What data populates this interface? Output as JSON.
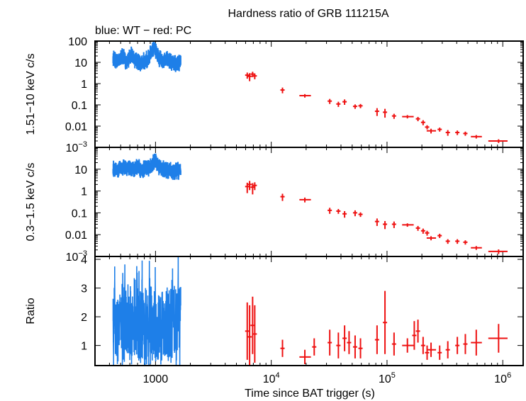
{
  "chart_data": {
    "type": "scatter",
    "title": "Hardness ratio of GRB 111215A",
    "subtitle": "blue: WT − red: PC",
    "xlabel": "Time since BAT trigger (s)",
    "xscale": "log",
    "xlim": [
      300,
      1500000
    ],
    "x_ticks": [
      {
        "value": 1000,
        "label": "1000"
      },
      {
        "value": 10000,
        "label": "10",
        "exp": "4"
      },
      {
        "value": 100000,
        "label": "10",
        "exp": "5"
      },
      {
        "value": 1000000,
        "label": "10",
        "exp": "6"
      }
    ],
    "colors": {
      "wt": "#1e7fe8",
      "pc": "#ee1111"
    },
    "panels": [
      {
        "id": "hard",
        "ylabel": "1.51−10 keV c/s",
        "yscale": "log",
        "ylim": [
          0.001,
          100
        ],
        "y_ticks": [
          {
            "value": 100,
            "label": "100"
          },
          {
            "value": 10,
            "label": "10"
          },
          {
            "value": 1,
            "label": "1"
          },
          {
            "value": 0.1,
            "label": "0.1"
          },
          {
            "value": 0.01,
            "label": "0.01"
          },
          {
            "value": 0.001,
            "label": "10",
            "exp": "−3"
          }
        ],
        "wt_segments": [
          [
            430,
            15
          ],
          [
            480,
            12
          ],
          [
            520,
            20
          ],
          [
            560,
            10
          ],
          [
            620,
            22
          ],
          [
            680,
            12
          ],
          [
            740,
            9
          ],
          [
            800,
            11
          ],
          [
            860,
            15
          ],
          [
            920,
            28
          ],
          [
            980,
            50
          ],
          [
            1020,
            30
          ],
          [
            1080,
            16
          ],
          [
            1150,
            12
          ],
          [
            1250,
            14
          ],
          [
            1350,
            11
          ],
          [
            1480,
            10
          ],
          [
            1650,
            10
          ]
        ],
        "pc_points": [
          {
            "x": 6200,
            "y": 2.5,
            "dy": 0.8
          },
          {
            "x": 6500,
            "y": 2.2,
            "dy": 0.9
          },
          {
            "x": 6900,
            "y": 2.8,
            "dy": 0.8
          },
          {
            "x": 7200,
            "y": 2.3,
            "dy": 0.7
          },
          {
            "x": 12500,
            "y": 0.5,
            "dy": 0.15
          },
          {
            "x": 19500,
            "y": 0.27,
            "x0": 17500,
            "x1": 22000,
            "dy": 0.05
          },
          {
            "x": 32000,
            "y": 0.15,
            "dy": 0.04
          },
          {
            "x": 38000,
            "y": 0.11,
            "dy": 0.03
          },
          {
            "x": 43000,
            "y": 0.14,
            "dy": 0.04
          },
          {
            "x": 53000,
            "y": 0.085,
            "dy": 0.02
          },
          {
            "x": 59000,
            "y": 0.09,
            "dy": 0.02
          },
          {
            "x": 82000,
            "y": 0.05,
            "dy": 0.02
          },
          {
            "x": 96000,
            "y": 0.045,
            "dy": 0.02
          },
          {
            "x": 115000,
            "y": 0.03,
            "dy": 0.008
          },
          {
            "x": 150000,
            "y": 0.028,
            "x0": 135000,
            "x1": 170000,
            "dy": 0.005
          },
          {
            "x": 185000,
            "y": 0.022,
            "dy": 0.005
          },
          {
            "x": 205000,
            "y": 0.015,
            "dy": 0.004
          },
          {
            "x": 222000,
            "y": 0.009,
            "dy": 0.002
          },
          {
            "x": 240000,
            "y": 0.006,
            "x0": 220000,
            "x1": 265000,
            "dy": 0.0015
          },
          {
            "x": 285000,
            "y": 0.007,
            "dy": 0.0015
          },
          {
            "x": 335000,
            "y": 0.005,
            "dy": 0.0015
          },
          {
            "x": 405000,
            "y": 0.005,
            "dy": 0.0012
          },
          {
            "x": 475000,
            "y": 0.0045,
            "dy": 0.001
          },
          {
            "x": 590000,
            "y": 0.0032,
            "x0": 530000,
            "x1": 660000,
            "dy": 0.0006
          },
          {
            "x": 920000,
            "y": 0.002,
            "x0": 750000,
            "x1": 1100000,
            "dy": 0.0004
          }
        ]
      },
      {
        "id": "soft",
        "ylabel": "0.3−1.5 keV c/s",
        "yscale": "log",
        "ylim": [
          0.001,
          100
        ],
        "y_ticks": [
          {
            "value": 10,
            "label": "10"
          },
          {
            "value": 1,
            "label": "1"
          },
          {
            "value": 0.1,
            "label": "0.1"
          },
          {
            "value": 0.01,
            "label": "0.01"
          },
          {
            "value": 0.001,
            "label": "10",
            "exp": "−3"
          }
        ],
        "wt_segments": [
          [
            430,
            11
          ],
          [
            500,
            10
          ],
          [
            560,
            11
          ],
          [
            620,
            10
          ],
          [
            700,
            12
          ],
          [
            780,
            10
          ],
          [
            860,
            11
          ],
          [
            920,
            14
          ],
          [
            980,
            22
          ],
          [
            1040,
            16
          ],
          [
            1120,
            12
          ],
          [
            1250,
            9
          ],
          [
            1400,
            8
          ],
          [
            1550,
            8
          ],
          [
            1650,
            9
          ]
        ],
        "pc_points": [
          {
            "x": 6200,
            "y": 1.6,
            "dy": 0.8
          },
          {
            "x": 6500,
            "y": 2.0,
            "dy": 0.9
          },
          {
            "x": 6900,
            "y": 1.5,
            "dy": 0.8
          },
          {
            "x": 7200,
            "y": 1.8,
            "dy": 0.7
          },
          {
            "x": 12500,
            "y": 0.55,
            "dy": 0.2
          },
          {
            "x": 19500,
            "y": 0.4,
            "x0": 17500,
            "x1": 22000,
            "dy": 0.1
          },
          {
            "x": 32000,
            "y": 0.13,
            "dy": 0.04
          },
          {
            "x": 38000,
            "y": 0.12,
            "dy": 0.03
          },
          {
            "x": 43000,
            "y": 0.09,
            "dy": 0.03
          },
          {
            "x": 53000,
            "y": 0.1,
            "dy": 0.03
          },
          {
            "x": 59000,
            "y": 0.085,
            "dy": 0.02
          },
          {
            "x": 82000,
            "y": 0.04,
            "dy": 0.015
          },
          {
            "x": 96000,
            "y": 0.03,
            "dy": 0.012
          },
          {
            "x": 115000,
            "y": 0.03,
            "dy": 0.01
          },
          {
            "x": 150000,
            "y": 0.028,
            "x0": 135000,
            "x1": 170000,
            "dy": 0.005
          },
          {
            "x": 185000,
            "y": 0.02,
            "dy": 0.005
          },
          {
            "x": 205000,
            "y": 0.015,
            "dy": 0.004
          },
          {
            "x": 222000,
            "y": 0.012,
            "dy": 0.003
          },
          {
            "x": 240000,
            "y": 0.007,
            "x0": 220000,
            "x1": 265000,
            "dy": 0.0015
          },
          {
            "x": 285000,
            "y": 0.009,
            "dy": 0.002
          },
          {
            "x": 335000,
            "y": 0.005,
            "dy": 0.0012
          },
          {
            "x": 405000,
            "y": 0.005,
            "dy": 0.0012
          },
          {
            "x": 475000,
            "y": 0.0045,
            "dy": 0.001
          },
          {
            "x": 590000,
            "y": 0.0025,
            "x0": 530000,
            "x1": 660000,
            "dy": 0.0005
          },
          {
            "x": 920000,
            "y": 0.0017,
            "x0": 750000,
            "x1": 1100000,
            "dy": 0.0004
          }
        ]
      },
      {
        "id": "ratio",
        "ylabel": "Ratio",
        "yscale": "linear",
        "ylim": [
          0.3,
          4.1
        ],
        "y_ticks": [
          {
            "value": 1,
            "label": "1"
          },
          {
            "value": 2,
            "label": "2"
          },
          {
            "value": 3,
            "label": "3"
          },
          {
            "value": 4,
            "label": "4"
          }
        ],
        "wt_band": {
          "x0": 430,
          "x1": 1650,
          "mean": 1.7,
          "spread": 1.1,
          "max": 3.9,
          "min": 0.6
        },
        "pc_points": [
          {
            "x": 6200,
            "y": 1.5,
            "dy": 1.0
          },
          {
            "x": 6500,
            "y": 1.3,
            "dy": 1.1
          },
          {
            "x": 6900,
            "y": 1.7,
            "dy": 1.0
          },
          {
            "x": 7200,
            "y": 1.4,
            "dy": 1.0
          },
          {
            "x": 12500,
            "y": 0.9,
            "dy": 0.3
          },
          {
            "x": 19500,
            "y": 0.6,
            "x0": 17500,
            "x1": 22000,
            "dy": 0.25
          },
          {
            "x": 23500,
            "y": 0.95,
            "dy": 0.3
          },
          {
            "x": 32000,
            "y": 1.1,
            "dy": 0.45
          },
          {
            "x": 38000,
            "y": 1.0,
            "dy": 0.45
          },
          {
            "x": 43000,
            "y": 1.25,
            "dy": 0.45
          },
          {
            "x": 47000,
            "y": 1.1,
            "dy": 0.4
          },
          {
            "x": 53000,
            "y": 0.95,
            "dy": 0.4
          },
          {
            "x": 59000,
            "y": 0.9,
            "dy": 0.35
          },
          {
            "x": 82000,
            "y": 1.2,
            "dy": 0.5
          },
          {
            "x": 96000,
            "y": 1.8,
            "dy": 1.1
          },
          {
            "x": 115000,
            "y": 1.05,
            "dy": 0.4
          },
          {
            "x": 150000,
            "y": 1.0,
            "x0": 135000,
            "x1": 170000,
            "dy": 0.25
          },
          {
            "x": 172000,
            "y": 1.35,
            "dy": 0.5
          },
          {
            "x": 185000,
            "y": 1.5,
            "dy": 0.4
          },
          {
            "x": 205000,
            "y": 1.0,
            "dy": 0.3
          },
          {
            "x": 222000,
            "y": 0.75,
            "dy": 0.25
          },
          {
            "x": 240000,
            "y": 0.85,
            "x0": 220000,
            "x1": 265000,
            "dy": 0.25
          },
          {
            "x": 285000,
            "y": 0.75,
            "dy": 0.25
          },
          {
            "x": 335000,
            "y": 0.85,
            "dy": 0.3
          },
          {
            "x": 405000,
            "y": 1.0,
            "dy": 0.3
          },
          {
            "x": 475000,
            "y": 1.05,
            "dy": 0.35
          },
          {
            "x": 590000,
            "y": 1.1,
            "x0": 530000,
            "x1": 660000,
            "dy": 0.45
          },
          {
            "x": 920000,
            "y": 1.25,
            "x0": 750000,
            "x1": 1100000,
            "dy": 0.5
          }
        ]
      }
    ]
  }
}
